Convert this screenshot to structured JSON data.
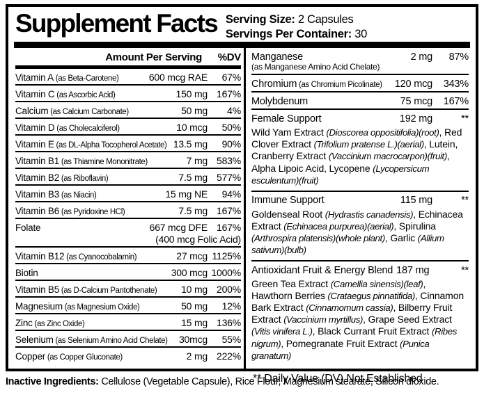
{
  "header": {
    "title": "Supplement Facts",
    "serving_size_label": "Serving Size:",
    "serving_size_value": "2 Capsules",
    "servings_label": "Servings Per Container:",
    "servings_value": "30"
  },
  "left_column": {
    "col_amount": "Amount Per Serving",
    "col_dv": "%DV",
    "rows": [
      {
        "name": "Vitamin A",
        "sub": "(as Beta-Carotene)",
        "amount": "600 mcg RAE",
        "dv": "67%"
      },
      {
        "name": "Vitamin C",
        "sub": "(as Ascorbic Acid)",
        "amount": "150 mg",
        "dv": "167%"
      },
      {
        "name": "Calcium",
        "sub": "(as Calcium Carbonate)",
        "amount": "50 mg",
        "dv": "4%"
      },
      {
        "name": "Vitamin D",
        "sub": "(as Cholecalciferol)",
        "amount": "10 mcg",
        "dv": "50%"
      },
      {
        "name": "Vitamin E",
        "sub": "(as DL-Alpha Tocopherol Acetate)",
        "amount": "13.5 mg",
        "dv": "90%"
      },
      {
        "name": "Vitamin B1",
        "sub": "(as Thiamine Mononitrate)",
        "amount": "7 mg",
        "dv": "583%"
      },
      {
        "name": "Vitamin B2",
        "sub": "(as Riboflavin)",
        "amount": "7.5 mg",
        "dv": "577%"
      },
      {
        "name": "Vitamin B3",
        "sub": "(as Niacin)",
        "amount": "15 mg NE",
        "dv": "94%"
      },
      {
        "name": "Vitamin B6",
        "sub": "(as Pyridoxine HCl)",
        "amount": "7.5 mg",
        "dv": "167%"
      },
      {
        "name": "Folate",
        "amount": "667 mcg DFE",
        "amount2": "(400 mcg Folic Acid)",
        "dv": "167%"
      },
      {
        "name": "Vitamin B12",
        "sub": "(as Cyanocobalamin)",
        "amount": "27 mcg",
        "dv": "1125%"
      },
      {
        "name": "Biotin",
        "amount": "300 mcg",
        "dv": "1000%"
      },
      {
        "name": "Vitamin B5",
        "sub": "(as D-Calcium Pantothenate)",
        "amount": "10 mg",
        "dv": "200%"
      },
      {
        "name": "Magnesium",
        "sub": "(as Magnesium Oxide)",
        "amount": "50 mg",
        "dv": "12%"
      },
      {
        "name": "Zinc",
        "sub": "(as Zinc Oxide)",
        "amount": "15 mg",
        "dv": "136%"
      },
      {
        "name": "Selenium",
        "sub": "(as Selenium Amino Acid Chelate)",
        "amount": "30mcg",
        "dv": "55%"
      },
      {
        "name": "Copper",
        "sub": "(as Copper Gluconate)",
        "amount": "2 mg",
        "dv": "222%"
      }
    ]
  },
  "right_column": {
    "rows": [
      {
        "name": "Manganese",
        "sub": "(as Manganese Amino Acid Chelate)",
        "sub_newline": true,
        "amount": "2 mg",
        "dv": "87%"
      },
      {
        "name": "Chromium",
        "sub": "(as Chromium Picolinate)",
        "amount": "120 mcg",
        "dv": "343%"
      },
      {
        "name": "Molybdenum",
        "amount": "75 mcg",
        "dv": "167%"
      },
      {
        "name": "Female Support",
        "amount": "192 mg",
        "dv": "**",
        "blend": [
          {
            "t": "Wild Yam Extract ",
            "i": false
          },
          {
            "t": "(Dioscorea oppositifolia)(root)",
            "i": true
          },
          {
            "t": ", Red Clover Extract ",
            "i": false
          },
          {
            "t": "(Trifolium pratense L.)(aerial)",
            "i": true
          },
          {
            "t": ", Lutein, Cranberry Extract ",
            "i": false
          },
          {
            "t": "(Vaccinium macrocarpon)(fruit)",
            "i": true
          },
          {
            "t": ", Alpha Lipoic Acid, Lycopene ",
            "i": false
          },
          {
            "t": "(Lycopersicum esculentum)(fruit)",
            "i": true
          }
        ]
      },
      {
        "name": "Immune Support",
        "amount": "115 mg",
        "dv": "**",
        "blend": [
          {
            "t": "Goldenseal Root ",
            "i": false
          },
          {
            "t": "(Hydrastis canadensis)",
            "i": true
          },
          {
            "t": ", Echinacea Extract ",
            "i": false
          },
          {
            "t": "(Echinacea purpurea)(aerial)",
            "i": true
          },
          {
            "t": ", Spirulina ",
            "i": false
          },
          {
            "t": "(Arthrospira platensis)(whole plant)",
            "i": true
          },
          {
            "t": ", Garlic ",
            "i": false
          },
          {
            "t": "(Allium sativum)(bulb)",
            "i": true
          }
        ]
      },
      {
        "name": "Antioxidant Fruit & Energy Blend",
        "amount": "187 mg",
        "dv": "**",
        "inline_amount": true,
        "blend": [
          {
            "t": "Green Tea Extract ",
            "i": false
          },
          {
            "t": "(Camellia sinensis)(leaf)",
            "i": true
          },
          {
            "t": ", Hawthorn Berries ",
            "i": false
          },
          {
            "t": "(Crataegus pinnatifida)",
            "i": true
          },
          {
            "t": ", Cinnamon Bark Extract ",
            "i": false
          },
          {
            "t": "(Cinnamomum cassia)",
            "i": true
          },
          {
            "t": ", Bilberry Fruit Extract ",
            "i": false
          },
          {
            "t": "(Vaccinium myrtillus)",
            "i": true
          },
          {
            "t": ", Grape Seed Extract ",
            "i": false
          },
          {
            "t": "(Vitis vinifera L.)",
            "i": true
          },
          {
            "t": ", Black Currant Fruit Extract ",
            "i": false
          },
          {
            "t": "(Ribes nigrum)",
            "i": true
          },
          {
            "t": ", Pomegranate Fruit Extract ",
            "i": false
          },
          {
            "t": "(Punica granatum)",
            "i": true
          }
        ]
      }
    ],
    "footnote": "** Daily Value (DV) Not Established"
  },
  "footer": {
    "label": "Inactive Ingredients:",
    "text": " Cellulose (Vegetable Capsule), Rice Flour, Magnesium stearate, Silicon dioxide."
  },
  "colors": {
    "ink": "#000000",
    "background": "#ffffff"
  }
}
